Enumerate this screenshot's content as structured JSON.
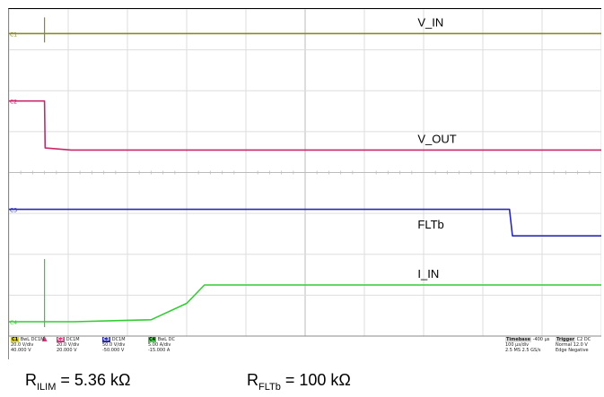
{
  "chart_data": {
    "type": "line",
    "title": "",
    "xlabel": "",
    "ylabel": "",
    "grid": true,
    "time_divisions": 10,
    "samples_in_divisions": [
      0,
      0.6,
      0.61,
      1.05,
      1.1,
      2.4,
      3.0,
      3.3,
      5.0,
      8.45,
      8.5,
      10
    ],
    "series": [
      {
        "name": "V_IN",
        "color": "#8a8a22",
        "y_div": [
          7.4,
          7.4,
          7.4,
          7.4,
          7.4,
          7.4,
          7.4,
          7.4,
          7.4,
          7.4,
          7.4,
          7.4
        ]
      },
      {
        "name": "V_OUT",
        "color": "#c8286a",
        "y_div": [
          5.75,
          5.75,
          4.6,
          4.55,
          4.55,
          4.55,
          4.55,
          4.55,
          4.55,
          4.55,
          4.55,
          4.55
        ]
      },
      {
        "name": "FLTb",
        "color": "#2a2ab0",
        "y_div": [
          3.1,
          3.1,
          3.1,
          3.1,
          3.1,
          3.1,
          3.1,
          3.1,
          3.1,
          3.1,
          2.45,
          2.45
        ]
      },
      {
        "name": "I_IN",
        "color": "#33cc33",
        "y_div": [
          0.35,
          0.35,
          0.35,
          0.35,
          0.35,
          0.4,
          0.8,
          1.25,
          1.25,
          1.25,
          1.25,
          1.25
        ]
      }
    ],
    "labels": [
      "V_IN",
      "V_OUT",
      "FLTb",
      "I_IN"
    ],
    "spike_at_div": 0.6
  },
  "scope_status": {
    "c1": {
      "tag": "C1",
      "line1": "BwL DC1M",
      "line2": "20.0 V/div",
      "line3": "40.000 V",
      "color": "#d8d020"
    },
    "c2": {
      "tag": "C2",
      "line1": "DC1M",
      "line2": "20.0 V/div",
      "line3": "20.000 V",
      "color": "#e0307a"
    },
    "c3": {
      "tag": "C3",
      "line1": "DC1M",
      "line2": "50.0 V/div",
      "line3": "-50.000 V",
      "color": "#2a2ab0"
    },
    "c4": {
      "tag": "C4",
      "line1": "BwL DC",
      "line2": "5.00 A/div",
      "line3": "-15.000 A",
      "color": "#44cc44"
    },
    "timebase": {
      "title": "Timebase",
      "offset": "-400 µs",
      "per_div": "100 µs/div",
      "samples": "2.5 MS",
      "rate": "2.5 GS/s"
    },
    "trigger": {
      "title": "Trigger",
      "chan": "C2 DC",
      "mode": "Normal",
      "level": "12.0 V",
      "type": "Edge",
      "slope": "Negative"
    }
  },
  "caption": {
    "r_ilim": {
      "main": "R",
      "sub": "ILIM",
      "value": " = 5.36 kΩ"
    },
    "r_fltb": {
      "main": "R",
      "sub": "FLTb",
      "value": " = 100 kΩ"
    }
  }
}
